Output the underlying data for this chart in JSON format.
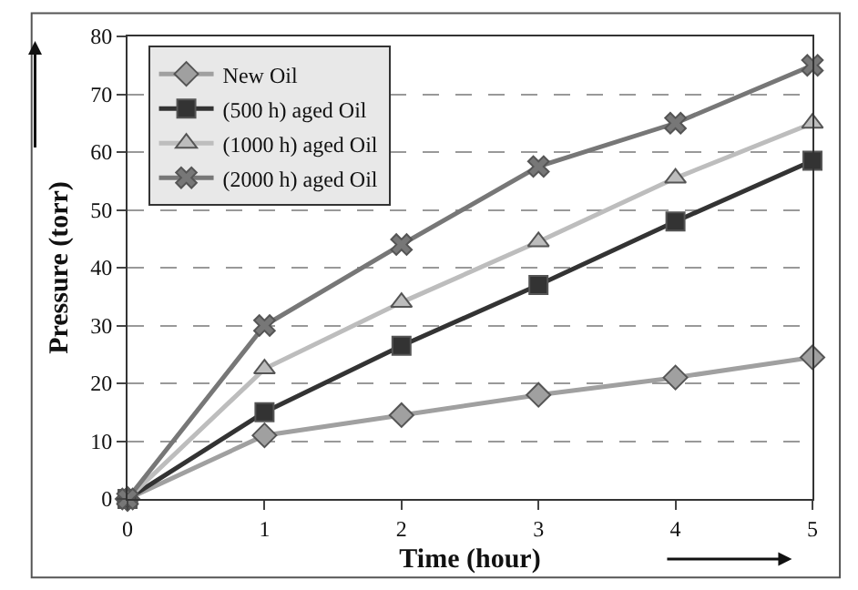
{
  "chart_data": {
    "type": "line",
    "xlabel": "Time (hour)",
    "ylabel": "Pressure (torr)",
    "x": [
      0,
      1,
      2,
      3,
      4,
      5
    ],
    "xlim": [
      0,
      5
    ],
    "xticks": [
      0,
      1,
      2,
      3,
      4,
      5
    ],
    "ylim": [
      0,
      80
    ],
    "yticks": [
      0,
      10,
      20,
      30,
      40,
      50,
      60,
      70,
      80
    ],
    "grid": "y",
    "legend": "top left",
    "series": [
      {
        "name": "New Oil",
        "color": "#a0a0a0",
        "marker": "diamond",
        "values": [
          0,
          11,
          14.5,
          18,
          21,
          24.5
        ]
      },
      {
        "name": "(500 h) aged Oil",
        "color": "#333333",
        "marker": "square",
        "values": [
          0,
          15,
          26.5,
          37,
          48,
          58.5
        ]
      },
      {
        "name": "(1000 h) aged Oil",
        "color": "#bdbdbd",
        "marker": "triangle",
        "values": [
          0,
          22.5,
          34,
          44.5,
          55.5,
          65
        ]
      },
      {
        "name": "(2000 h) aged Oil",
        "color": "#777777",
        "marker": "cross",
        "values": [
          0,
          30,
          44,
          57.5,
          65,
          75
        ]
      }
    ]
  }
}
